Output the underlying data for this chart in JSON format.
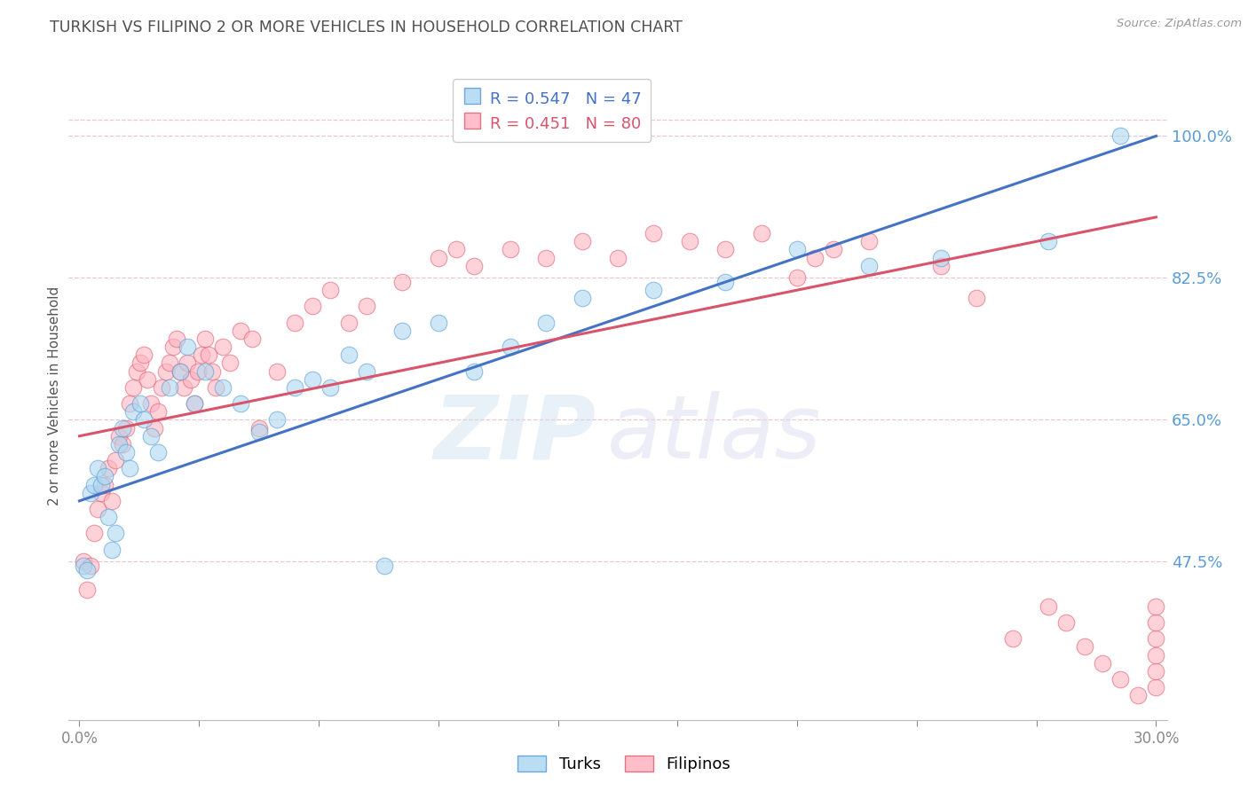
{
  "title": "TURKISH VS FILIPINO 2 OR MORE VEHICLES IN HOUSEHOLD CORRELATION CHART",
  "source": "Source: ZipAtlas.com",
  "ylabel": "2 or more Vehicles in Household",
  "y_ticks_right": [
    47.5,
    65.0,
    82.5,
    100.0
  ],
  "y_min": 28.0,
  "y_max": 108.0,
  "x_min": -0.3,
  "x_max": 30.3,
  "blue_R": 0.547,
  "blue_N": 47,
  "pink_R": 0.451,
  "pink_N": 80,
  "blue_color": "#add8f0",
  "pink_color": "#ffb3c1",
  "blue_edge_color": "#5b9bd5",
  "pink_edge_color": "#e06070",
  "blue_line_color": "#4472c4",
  "pink_line_color": "#d9546a",
  "legend_blue_label": "Turks",
  "legend_pink_label": "Filipinos",
  "watermark_zip": "ZIP",
  "watermark_atlas": "atlas",
  "background_color": "#ffffff",
  "grid_color": "#e8c8d0",
  "title_color": "#505050",
  "right_axis_color": "#5b9bd5",
  "x_tick_labels": [
    "0.0%",
    "",
    "",
    "",
    "",
    "",
    "",
    "",
    "",
    "30.0%"
  ],
  "blue_line_x0": 0.0,
  "blue_line_y0": 55.0,
  "blue_line_x1": 30.0,
  "blue_line_y1": 100.0,
  "pink_line_x0": 0.0,
  "pink_line_y0": 63.0,
  "pink_line_x1": 30.0,
  "pink_line_y1": 90.0,
  "blue_x": [
    0.1,
    0.2,
    0.3,
    0.4,
    0.5,
    0.6,
    0.7,
    0.8,
    0.9,
    1.0,
    1.1,
    1.2,
    1.3,
    1.4,
    1.5,
    1.7,
    1.8,
    2.0,
    2.2,
    2.5,
    2.8,
    3.0,
    3.2,
    3.5,
    4.0,
    4.5,
    5.0,
    5.5,
    6.0,
    6.5,
    7.0,
    7.5,
    8.0,
    8.5,
    9.0,
    10.0,
    11.0,
    12.0,
    13.0,
    14.0,
    16.0,
    18.0,
    20.0,
    22.0,
    24.0,
    27.0,
    29.0
  ],
  "blue_y": [
    47.0,
    46.5,
    56.0,
    57.0,
    59.0,
    57.0,
    58.0,
    53.0,
    49.0,
    51.0,
    62.0,
    64.0,
    61.0,
    59.0,
    66.0,
    67.0,
    65.0,
    63.0,
    61.0,
    69.0,
    71.0,
    74.0,
    67.0,
    71.0,
    69.0,
    67.0,
    63.5,
    65.0,
    69.0,
    70.0,
    69.0,
    73.0,
    71.0,
    47.0,
    76.0,
    77.0,
    71.0,
    74.0,
    77.0,
    80.0,
    81.0,
    82.0,
    86.0,
    84.0,
    85.0,
    87.0,
    100.0
  ],
  "pink_x": [
    0.1,
    0.2,
    0.3,
    0.4,
    0.5,
    0.6,
    0.7,
    0.8,
    0.9,
    1.0,
    1.1,
    1.2,
    1.3,
    1.4,
    1.5,
    1.6,
    1.7,
    1.8,
    1.9,
    2.0,
    2.1,
    2.2,
    2.3,
    2.4,
    2.5,
    2.6,
    2.7,
    2.8,
    2.9,
    3.0,
    3.1,
    3.2,
    3.3,
    3.4,
    3.5,
    3.6,
    3.7,
    3.8,
    4.0,
    4.2,
    4.5,
    4.8,
    5.0,
    5.5,
    6.0,
    6.5,
    7.0,
    7.5,
    8.0,
    9.0,
    10.0,
    10.5,
    11.0,
    12.0,
    13.0,
    14.0,
    15.0,
    16.0,
    17.0,
    18.0,
    19.0,
    20.0,
    20.5,
    21.0,
    22.0,
    24.0,
    25.0,
    26.0,
    27.0,
    27.5,
    28.0,
    28.5,
    29.0,
    29.5,
    30.0,
    30.0,
    30.0,
    30.0,
    30.0,
    30.0
  ],
  "pink_y": [
    47.5,
    44.0,
    47.0,
    51.0,
    54.0,
    56.0,
    57.0,
    59.0,
    55.0,
    60.0,
    63.0,
    62.0,
    64.0,
    67.0,
    69.0,
    71.0,
    72.0,
    73.0,
    70.0,
    67.0,
    64.0,
    66.0,
    69.0,
    71.0,
    72.0,
    74.0,
    75.0,
    71.0,
    69.0,
    72.0,
    70.0,
    67.0,
    71.0,
    73.0,
    75.0,
    73.0,
    71.0,
    69.0,
    74.0,
    72.0,
    76.0,
    75.0,
    64.0,
    71.0,
    77.0,
    79.0,
    81.0,
    77.0,
    79.0,
    82.0,
    85.0,
    86.0,
    84.0,
    86.0,
    85.0,
    87.0,
    85.0,
    88.0,
    87.0,
    86.0,
    88.0,
    82.5,
    85.0,
    86.0,
    87.0,
    84.0,
    80.0,
    38.0,
    42.0,
    40.0,
    37.0,
    35.0,
    33.0,
    31.0,
    32.0,
    34.0,
    36.0,
    38.0,
    40.0,
    42.0
  ]
}
